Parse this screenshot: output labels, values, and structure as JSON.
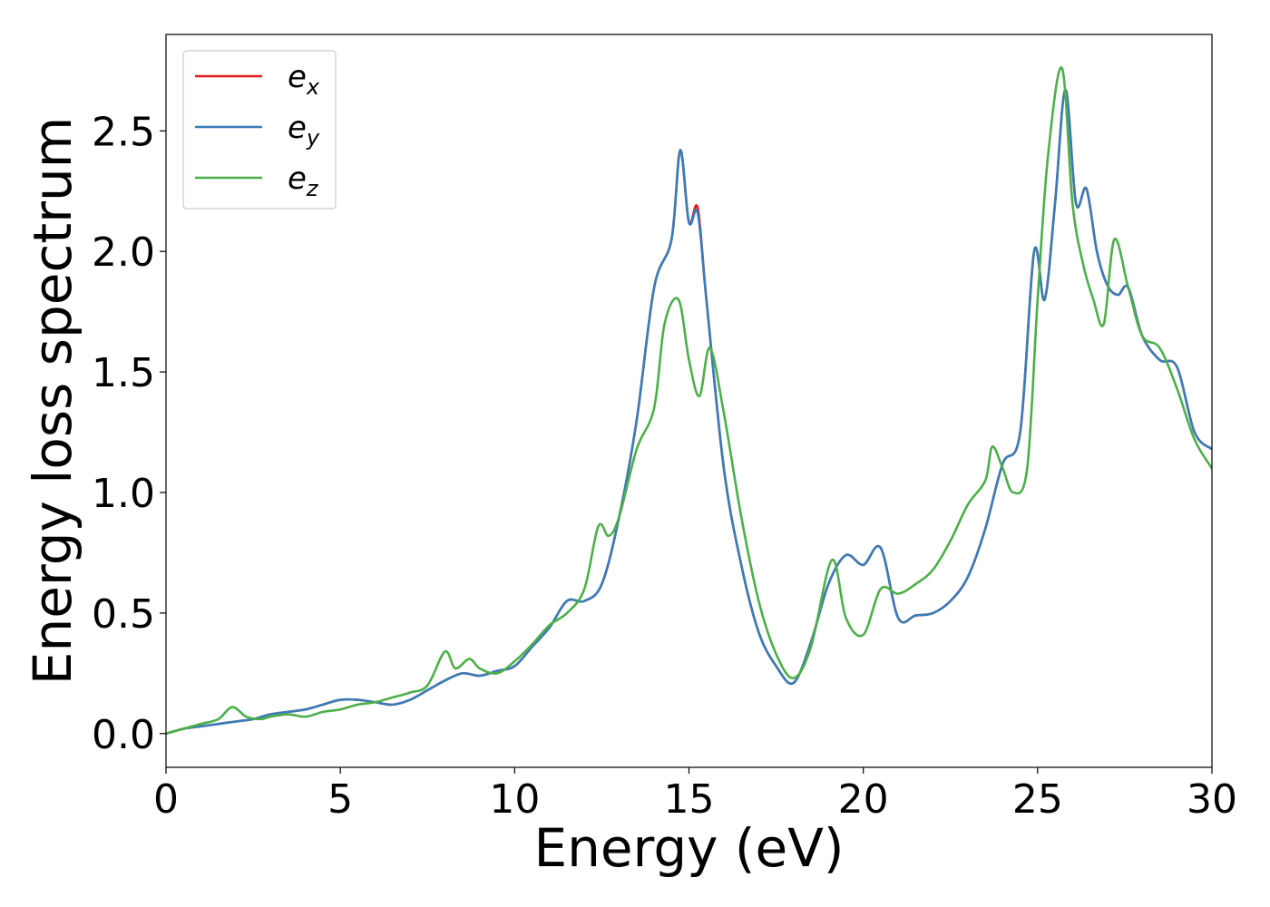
{
  "chart_data": {
    "type": "line",
    "title": "",
    "xlabel": "Energy (eV)",
    "ylabel": "Energy loss spectrum",
    "xlim": [
      0,
      30
    ],
    "ylim": [
      -0.14,
      2.9
    ],
    "xticks": [
      0,
      5,
      10,
      15,
      20,
      25,
      30
    ],
    "yticks": [
      0.0,
      0.5,
      1.0,
      1.5,
      2.0,
      2.5
    ],
    "xtick_labels": [
      "0",
      "5",
      "10",
      "15",
      "20",
      "25",
      "30"
    ],
    "ytick_labels": [
      "0.0",
      "0.5",
      "1.0",
      "1.5",
      "2.0",
      "2.5"
    ],
    "grid": false,
    "legend_position": "top-left",
    "series": [
      {
        "name": "e_x",
        "label_base": "e",
        "label_sub": "x",
        "color": "#e41a1c",
        "x": [
          0,
          0.5,
          1,
          1.5,
          2,
          2.5,
          3,
          3.5,
          4,
          4.5,
          5,
          5.5,
          6,
          6.5,
          7,
          7.5,
          8,
          8.5,
          9,
          9.5,
          10,
          10.5,
          11,
          11.5,
          12,
          12.5,
          13,
          13.5,
          14,
          14.5,
          14.75,
          15,
          15.25,
          15.5,
          16,
          16.5,
          17,
          17.5,
          18,
          18.5,
          19,
          19.5,
          20,
          20.5,
          21,
          21.5,
          22,
          22.5,
          23,
          23.5,
          24,
          24.5,
          24.9,
          25.2,
          25.5,
          25.8,
          26.1,
          26.4,
          26.7,
          27,
          27.3,
          27.6,
          28,
          28.5,
          29,
          29.5,
          30
        ],
        "y": [
          0.0,
          0.02,
          0.03,
          0.04,
          0.05,
          0.06,
          0.08,
          0.09,
          0.1,
          0.12,
          0.14,
          0.14,
          0.13,
          0.12,
          0.14,
          0.18,
          0.22,
          0.25,
          0.24,
          0.26,
          0.28,
          0.36,
          0.44,
          0.55,
          0.55,
          0.62,
          0.9,
          1.3,
          1.85,
          2.05,
          2.42,
          2.12,
          2.18,
          1.8,
          1.1,
          0.7,
          0.42,
          0.28,
          0.21,
          0.38,
          0.62,
          0.74,
          0.7,
          0.77,
          0.48,
          0.49,
          0.5,
          0.55,
          0.65,
          0.85,
          1.12,
          1.25,
          2.0,
          1.8,
          2.2,
          2.67,
          2.2,
          2.26,
          2.0,
          1.86,
          1.82,
          1.85,
          1.65,
          1.55,
          1.52,
          1.25,
          1.18
        ]
      },
      {
        "name": "e_y",
        "label_base": "e",
        "label_sub": "y",
        "color": "#377eb8",
        "x": [
          0,
          0.5,
          1,
          1.5,
          2,
          2.5,
          3,
          3.5,
          4,
          4.5,
          5,
          5.5,
          6,
          6.5,
          7,
          7.5,
          8,
          8.5,
          9,
          9.5,
          10,
          10.5,
          11,
          11.5,
          12,
          12.5,
          13,
          13.5,
          14,
          14.5,
          14.75,
          15,
          15.25,
          15.5,
          16,
          16.5,
          17,
          17.5,
          18,
          18.5,
          19,
          19.5,
          20,
          20.5,
          21,
          21.5,
          22,
          22.5,
          23,
          23.5,
          24,
          24.5,
          24.9,
          25.2,
          25.5,
          25.8,
          26.1,
          26.4,
          26.7,
          27,
          27.3,
          27.6,
          28,
          28.5,
          29,
          29.5,
          30
        ],
        "y": [
          0.0,
          0.02,
          0.03,
          0.04,
          0.05,
          0.06,
          0.08,
          0.09,
          0.1,
          0.12,
          0.14,
          0.14,
          0.13,
          0.12,
          0.14,
          0.18,
          0.22,
          0.25,
          0.24,
          0.26,
          0.28,
          0.36,
          0.44,
          0.55,
          0.55,
          0.62,
          0.9,
          1.3,
          1.85,
          2.05,
          2.42,
          2.12,
          2.16,
          1.8,
          1.1,
          0.7,
          0.42,
          0.28,
          0.21,
          0.38,
          0.62,
          0.74,
          0.7,
          0.77,
          0.48,
          0.49,
          0.5,
          0.55,
          0.65,
          0.85,
          1.12,
          1.25,
          2.0,
          1.8,
          2.2,
          2.67,
          2.2,
          2.26,
          2.0,
          1.86,
          1.82,
          1.85,
          1.65,
          1.55,
          1.52,
          1.25,
          1.18
        ]
      },
      {
        "name": "e_z",
        "label_base": "e",
        "label_sub": "z",
        "color": "#4daf4a",
        "x": [
          0,
          0.5,
          1,
          1.5,
          1.9,
          2.3,
          2.7,
          3,
          3.5,
          4,
          4.5,
          5,
          5.5,
          6,
          6.5,
          7,
          7.5,
          8,
          8.3,
          8.7,
          9,
          9.5,
          10,
          10.5,
          11,
          11.5,
          12,
          12.4,
          12.7,
          13,
          13.5,
          14,
          14.3,
          14.7,
          15,
          15.3,
          15.6,
          16,
          16.5,
          17,
          17.5,
          18,
          18.5,
          19.1,
          19.5,
          20,
          20.5,
          21,
          21.5,
          22,
          22.5,
          23,
          23.5,
          23.7,
          24,
          24.3,
          24.7,
          25,
          25.3,
          25.7,
          26,
          26.3,
          26.6,
          26.9,
          27.2,
          27.6,
          28,
          28.5,
          29,
          29.5,
          30
        ],
        "y": [
          0.0,
          0.02,
          0.04,
          0.06,
          0.11,
          0.07,
          0.06,
          0.07,
          0.08,
          0.07,
          0.09,
          0.1,
          0.12,
          0.13,
          0.15,
          0.17,
          0.2,
          0.34,
          0.27,
          0.31,
          0.27,
          0.25,
          0.3,
          0.37,
          0.45,
          0.5,
          0.6,
          0.86,
          0.82,
          0.9,
          1.18,
          1.35,
          1.7,
          1.8,
          1.55,
          1.4,
          1.6,
          1.33,
          0.9,
          0.55,
          0.33,
          0.23,
          0.36,
          0.72,
          0.48,
          0.41,
          0.6,
          0.58,
          0.62,
          0.68,
          0.8,
          0.95,
          1.05,
          1.19,
          1.1,
          1.0,
          1.1,
          1.8,
          2.4,
          2.76,
          2.2,
          1.95,
          1.8,
          1.7,
          2.05,
          1.85,
          1.65,
          1.6,
          1.43,
          1.22,
          1.1
        ]
      }
    ]
  }
}
